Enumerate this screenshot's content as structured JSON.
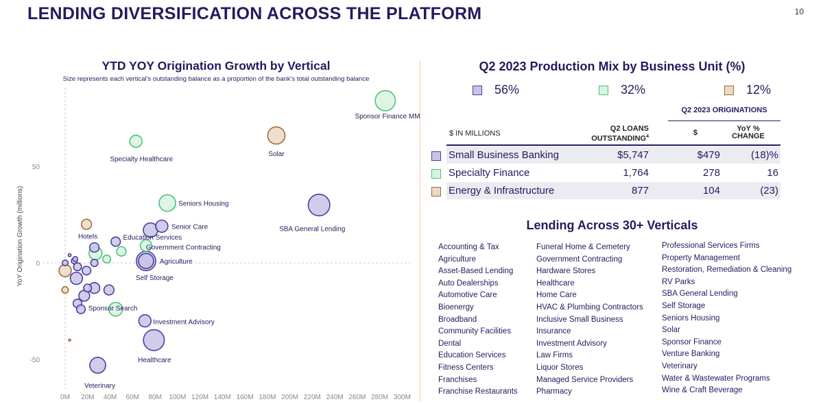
{
  "page": {
    "title": "LENDING DIVERSIFICATION ACROSS THE PLATFORM",
    "number": "10"
  },
  "chart_data": {
    "type": "scatter",
    "title": "YTD YOY Origination Growth by Vertical",
    "subtitle": "Size represents each vertical's outstanding balance as a proportion of the bank's total outstanding balance",
    "xlabel": "",
    "ylabel": "YoY Origination Growth (millions)",
    "xlim": [
      -20,
      310
    ],
    "ylim": [
      -65,
      90
    ],
    "xticks": [
      "0M",
      "20M",
      "40M",
      "60M",
      "80M",
      "100M",
      "120M",
      "140M",
      "160M",
      "180M",
      "200M",
      "220M",
      "240M",
      "260M",
      "280M",
      "300M"
    ],
    "yticks": [
      "50",
      "0",
      "-50"
    ],
    "colors": {
      "small_business": "#4a3f9c",
      "specialty": "#4cc277",
      "energy": "#a06a3a"
    },
    "points": [
      {
        "label": "Sponsor Finance MML",
        "x": 285,
        "y": 84,
        "size": 1.4,
        "group": "specialty"
      },
      {
        "label": "Solar",
        "x": 188,
        "y": 66,
        "size": 1.2,
        "group": "energy"
      },
      {
        "label": "Specialty Healthcare",
        "x": 63,
        "y": 63,
        "size": 0.85,
        "group": "specialty"
      },
      {
        "label": "SBA General Lending",
        "x": 226,
        "y": 30,
        "size": 1.5,
        "group": "small_business"
      },
      {
        "label": "Seniors Housing",
        "x": 91,
        "y": 31,
        "size": 1.15,
        "group": "specialty"
      },
      {
        "label": "Senior Care",
        "x": 86,
        "y": 19,
        "size": 0.85,
        "group": "small_business"
      },
      {
        "label": "Hotels",
        "x": 19,
        "y": 20,
        "size": 0.7,
        "group": "energy"
      },
      {
        "label": "Education Services",
        "x": 76,
        "y": 17,
        "size": 1.0,
        "group": "small_business"
      },
      {
        "label": "",
        "x": 45,
        "y": 11,
        "size": 0.65,
        "group": "small_business"
      },
      {
        "label": "Government Contracting",
        "x": 72,
        "y": 9,
        "size": 0.8,
        "group": "specialty"
      },
      {
        "label": "",
        "x": 26,
        "y": 8,
        "size": 0.65,
        "group": "small_business"
      },
      {
        "label": "",
        "x": 27,
        "y": 5,
        "size": 0.9,
        "group": "specialty"
      },
      {
        "label": "",
        "x": 50,
        "y": 6,
        "size": 0.65,
        "group": "specialty"
      },
      {
        "label": "",
        "x": 37,
        "y": 2,
        "size": 0.55,
        "group": "specialty"
      },
      {
        "label": "Agriculture",
        "x": 72,
        "y": 1,
        "size": 1.35,
        "group": "small_business"
      },
      {
        "label": "Self Storage",
        "x": 72,
        "y": 1,
        "size": 1.05,
        "group": "small_business"
      },
      {
        "label": "",
        "x": 4,
        "y": 4,
        "size": 0.2,
        "group": "small_business"
      },
      {
        "label": "",
        "x": 8,
        "y": 1,
        "size": 0.4,
        "group": "small_business"
      },
      {
        "label": "",
        "x": 9,
        "y": 2,
        "size": 0.35,
        "group": "small_business"
      },
      {
        "label": "",
        "x": 0,
        "y": 0,
        "size": 0.4,
        "group": "small_business"
      },
      {
        "label": "",
        "x": 26,
        "y": 0,
        "size": 0.5,
        "group": "small_business"
      },
      {
        "label": "",
        "x": 11,
        "y": -2,
        "size": 0.55,
        "group": "small_business"
      },
      {
        "label": "",
        "x": 19,
        "y": -4,
        "size": 0.6,
        "group": "small_business"
      },
      {
        "label": "",
        "x": 0,
        "y": -4,
        "size": 0.85,
        "group": "energy"
      },
      {
        "label": "",
        "x": 10,
        "y": -8,
        "size": 0.85,
        "group": "small_business"
      },
      {
        "label": "",
        "x": 20,
        "y": -13,
        "size": 0.55,
        "group": "small_business"
      },
      {
        "label": "",
        "x": 26,
        "y": -13,
        "size": 0.75,
        "group": "small_business"
      },
      {
        "label": "",
        "x": 39,
        "y": -14,
        "size": 0.7,
        "group": "small_business"
      },
      {
        "label": "",
        "x": 0,
        "y": -14,
        "size": 0.45,
        "group": "energy"
      },
      {
        "label": "",
        "x": 17,
        "y": -17,
        "size": 0.75,
        "group": "small_business"
      },
      {
        "label": "",
        "x": 11,
        "y": -21,
        "size": 0.6,
        "group": "small_business"
      },
      {
        "label": "",
        "x": 14,
        "y": -24,
        "size": 0.6,
        "group": "small_business"
      },
      {
        "label": "Sponsor Search",
        "x": 45,
        "y": -24,
        "size": 0.95,
        "group": "specialty"
      },
      {
        "label": "Investment Advisory",
        "x": 71,
        "y": -30,
        "size": 0.85,
        "group": "small_business"
      },
      {
        "label": "",
        "x": 4,
        "y": -40,
        "size": 0.15,
        "group": "energy"
      },
      {
        "label": "Healthcare",
        "x": 79,
        "y": -40,
        "size": 1.45,
        "group": "small_business"
      },
      {
        "label": "Veterinary",
        "x": 29,
        "y": -53,
        "size": 1.1,
        "group": "small_business"
      }
    ]
  },
  "mix": {
    "title": "Q2 2023 Production Mix by Business Unit (%)",
    "legend": [
      {
        "value": "56%",
        "color": "#4a3f9c",
        "fill": "#c8c4e6"
      },
      {
        "value": "32%",
        "color": "#4cc277",
        "fill": "#d8f3e2"
      },
      {
        "value": "12%",
        "color": "#a06a3a",
        "fill": "#e9d9c5"
      }
    ]
  },
  "table": {
    "originations_header": "Q2 2023 ORIGINATIONS",
    "col_units": "$ IN MILLIONS",
    "col_loans": "Q2 LOANS",
    "col_loans2": "OUTSTANDING",
    "col_loans_sup": "4",
    "col_dollars": "$",
    "col_yoy": "YoY %",
    "col_yoy2": "CHANGE",
    "rows": [
      {
        "name": "Small Business Banking",
        "loans": "$5,747",
        "orig": "$479",
        "yoy": "(18)%"
      },
      {
        "name": "Specialty Finance",
        "loans": "1,764",
        "orig": "278",
        "yoy": "16"
      },
      {
        "name": "Energy & Infrastructure",
        "loans": "877",
        "orig": "104",
        "yoy": "(23)"
      }
    ]
  },
  "verticals": {
    "title": "Lending Across 30+ Verticals",
    "col1": [
      "Accounting & Tax",
      "Agriculture",
      "Asset-Based Lending",
      "Auto Dealerships",
      "Automotive Care",
      "Bioenergy",
      "Broadband",
      "Community Facilities",
      "Dental",
      "Education Services",
      "Fitness Centers",
      "Franchises",
      "Franchise Restaurants"
    ],
    "col2": [
      "Funeral Home & Cemetery",
      "Government Contracting",
      "Hardware Stores",
      "Healthcare",
      "Home Care",
      "HVAC & Plumbing Contractors",
      "Inclusive Small Business",
      "Insurance",
      "Investment Advisory",
      "Law Firms",
      "Liquor Stores",
      "Managed Service Providers",
      "Pharmacy"
    ],
    "col3": [
      "Professional Services Firms",
      "Property Management",
      "Restoration, Remediation & Cleaning",
      "RV Parks",
      "SBA General Lending",
      "Self Storage",
      "Seniors Housing",
      "Solar",
      "Sponsor Finance",
      "Venture Banking",
      "Veterinary",
      "Water & Wastewater Programs",
      "Wine & Craft Beverage"
    ]
  }
}
